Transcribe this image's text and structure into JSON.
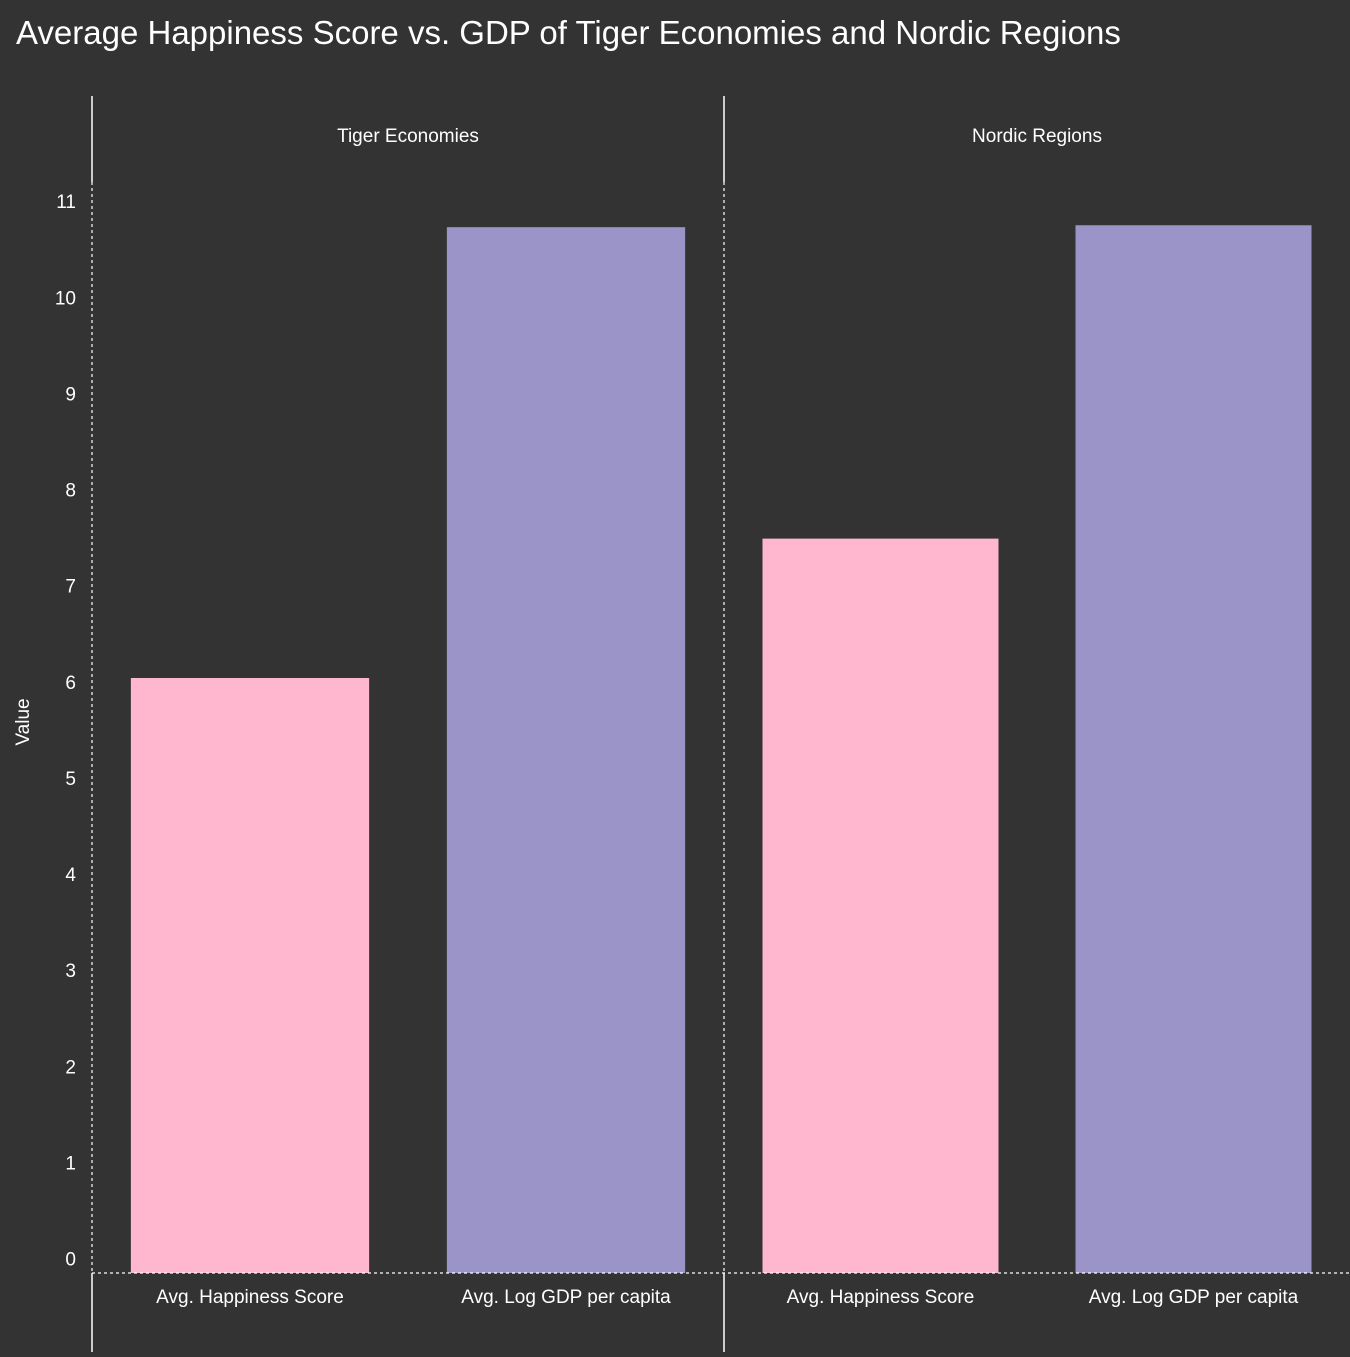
{
  "chart_data": {
    "type": "bar",
    "title": "Average Happiness Score vs. GDP of Tiger Economies and Nordic Regions",
    "xlabel": "",
    "ylabel": "Value",
    "ylim": [
      -0.15,
      11.2
    ],
    "yticks": [
      0,
      1,
      2,
      3,
      4,
      5,
      6,
      7,
      8,
      9,
      10,
      11
    ],
    "grid": false,
    "legend": "none",
    "categories": [
      "Avg. Happiness Score",
      "Avg. Log GDP per capita"
    ],
    "colors": [
      "#ffb7cf",
      "#9b94c9"
    ],
    "panels": [
      {
        "name": "Tiger Economies",
        "values": [
          6.04,
          10.73
        ]
      },
      {
        "name": "Nordic Regions",
        "values": [
          7.49,
          10.75
        ]
      }
    ]
  }
}
